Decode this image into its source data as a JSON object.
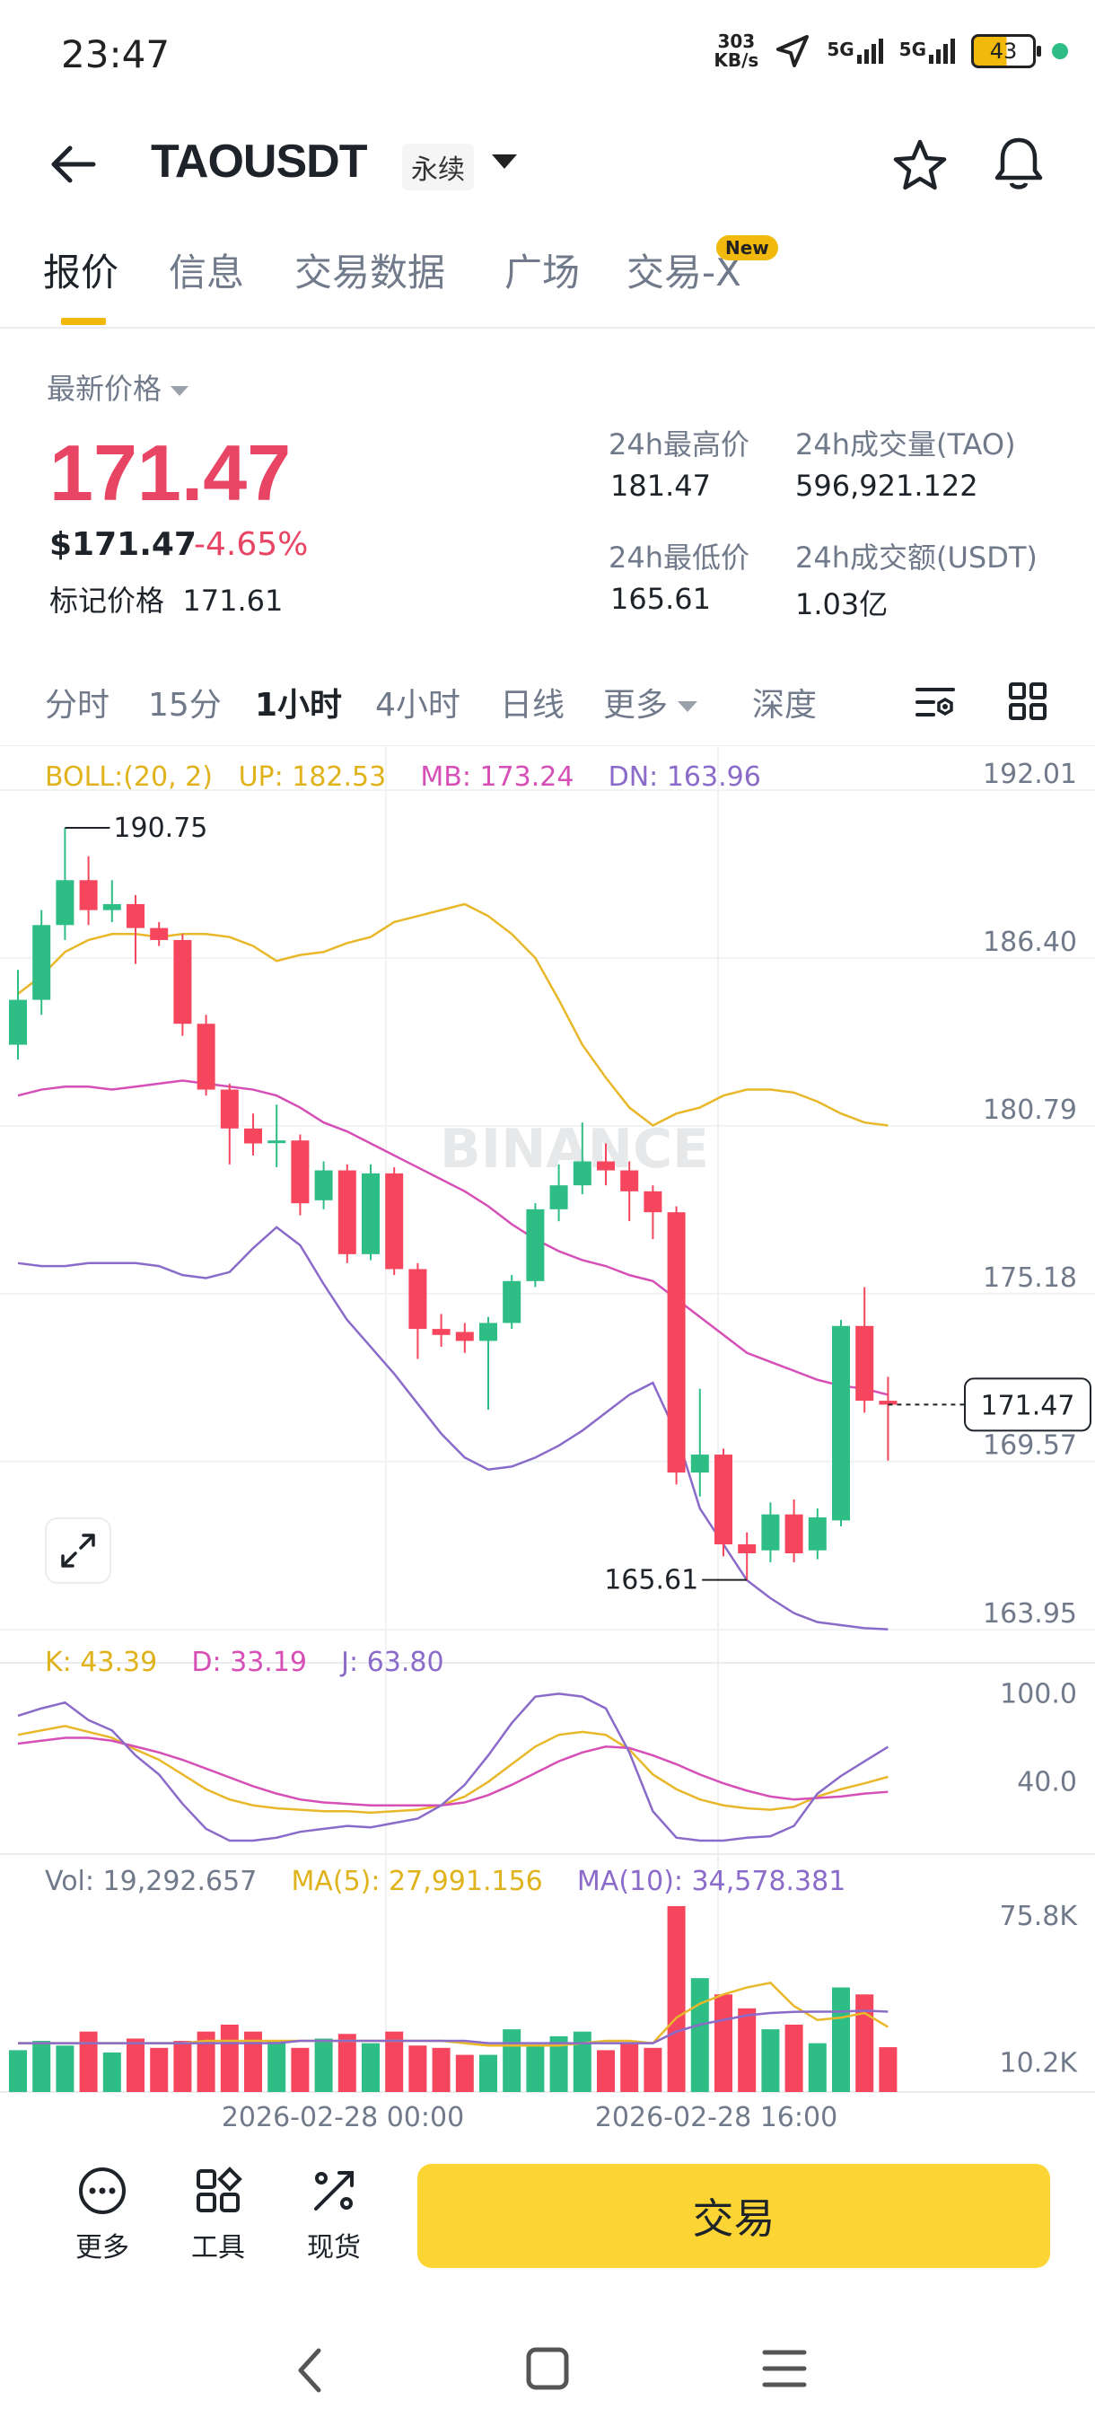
{
  "status": {
    "time": "23:47",
    "net_speed_top": "303",
    "net_speed_bottom": "KB/s",
    "sig1": "5G",
    "sig2": "5G",
    "battery": "43"
  },
  "header": {
    "pair": "TAOUSDT",
    "contract_type": "永续"
  },
  "tabs": [
    {
      "label": "报价"
    },
    {
      "label": "信息"
    },
    {
      "label": "交易数据"
    },
    {
      "label": "广场"
    },
    {
      "label": "交易-X"
    }
  ],
  "new_badge": "New",
  "price": {
    "latest_label": "最新价格",
    "last": "171.47",
    "usd": "$171.47",
    "change": "-4.65%",
    "mark_label": "标记价格",
    "mark_value": "171.61"
  },
  "stats": {
    "high_label": "24h最高价",
    "high_value": "181.47",
    "vol_tao_label": "24h成交量(TAO)",
    "vol_tao_value": "596,921.122",
    "low_label": "24h最低价",
    "low_value": "165.61",
    "vol_usdt_label": "24h成交额(USDT)",
    "vol_usdt_value": "1.03亿"
  },
  "timeframes": [
    {
      "label": "分时"
    },
    {
      "label": "15分"
    },
    {
      "label": "1小时"
    },
    {
      "label": "4小时"
    },
    {
      "label": "日线"
    },
    {
      "label": "更多"
    },
    {
      "label": "深度"
    }
  ],
  "colors": {
    "up": "#2ebd85",
    "down": "#f6465d",
    "boll_up": "#e8b82a",
    "boll_mb": "#d64fb6",
    "boll_dn": "#8a6bc9",
    "accent": "#fcd535"
  },
  "indicators": {
    "boll": {
      "label": "BOLL:(20, 2)",
      "up": "UP: 182.53",
      "mb": "MB: 173.24",
      "dn": "DN: 163.96"
    },
    "kdj": {
      "k": "K: 43.39",
      "d": "D: 33.19",
      "j": "J: 63.80"
    },
    "vol": {
      "vol": "Vol: 19,292.657",
      "ma5": "MA(5): 27,991.156",
      "ma10": "MA(10): 34,578.381"
    }
  },
  "watermark": "BINANCE",
  "axis": {
    "price_ticks": [
      "192.01",
      "186.40",
      "180.79",
      "175.18",
      "169.57",
      "163.95"
    ],
    "kdj_ticks": [
      "100.0",
      "40.0"
    ],
    "vol_ticks": [
      "75.8K",
      "10.2K"
    ],
    "time_labels": [
      "2026-02-28 00:00",
      "2026-02-28 16:00"
    ],
    "high_marker": "190.75",
    "low_marker": "165.61",
    "current_price": "171.47"
  },
  "chart_data": {
    "type": "candlestick",
    "interval": "1小时",
    "ylim": [
      163.95,
      192.01
    ],
    "candles": [
      {
        "o": 183.5,
        "c": 185.0,
        "h": 186.0,
        "l": 183.0
      },
      {
        "o": 185.0,
        "c": 187.5,
        "h": 188.0,
        "l": 184.5
      },
      {
        "o": 187.5,
        "c": 189.0,
        "h": 190.75,
        "l": 187.0
      },
      {
        "o": 189.0,
        "c": 188.0,
        "h": 189.8,
        "l": 187.5
      },
      {
        "o": 188.0,
        "c": 188.2,
        "h": 189.0,
        "l": 187.6
      },
      {
        "o": 188.2,
        "c": 187.4,
        "h": 188.5,
        "l": 186.2
      },
      {
        "o": 187.4,
        "c": 187.0,
        "h": 187.6,
        "l": 186.8
      },
      {
        "o": 187.0,
        "c": 184.2,
        "h": 187.2,
        "l": 183.8
      },
      {
        "o": 184.2,
        "c": 182.0,
        "h": 184.5,
        "l": 181.8
      },
      {
        "o": 182.0,
        "c": 180.7,
        "h": 182.2,
        "l": 179.5
      },
      {
        "o": 180.7,
        "c": 180.2,
        "h": 181.2,
        "l": 179.8
      },
      {
        "o": 180.3,
        "c": 180.3,
        "h": 181.5,
        "l": 179.4
      },
      {
        "o": 180.3,
        "c": 178.2,
        "h": 180.5,
        "l": 177.8
      },
      {
        "o": 178.3,
        "c": 179.3,
        "h": 179.6,
        "l": 178.0
      },
      {
        "o": 179.3,
        "c": 176.5,
        "h": 179.5,
        "l": 176.2
      },
      {
        "o": 176.5,
        "c": 179.2,
        "h": 179.5,
        "l": 176.3
      },
      {
        "o": 179.2,
        "c": 176.0,
        "h": 179.4,
        "l": 175.8
      },
      {
        "o": 176.0,
        "c": 174.0,
        "h": 176.2,
        "l": 173.0
      },
      {
        "o": 174.0,
        "c": 173.8,
        "h": 174.5,
        "l": 173.4
      },
      {
        "o": 173.9,
        "c": 173.6,
        "h": 174.2,
        "l": 173.2
      },
      {
        "o": 173.6,
        "c": 174.2,
        "h": 174.4,
        "l": 171.3
      },
      {
        "o": 174.2,
        "c": 175.6,
        "h": 175.8,
        "l": 174.0
      },
      {
        "o": 175.6,
        "c": 178.0,
        "h": 178.2,
        "l": 175.4
      },
      {
        "o": 178.0,
        "c": 178.8,
        "h": 179.5,
        "l": 177.6
      },
      {
        "o": 178.8,
        "c": 179.6,
        "h": 180.9,
        "l": 178.5
      },
      {
        "o": 179.6,
        "c": 179.3,
        "h": 180.2,
        "l": 178.8
      },
      {
        "o": 179.3,
        "c": 178.6,
        "h": 179.6,
        "l": 177.6
      },
      {
        "o": 178.6,
        "c": 177.9,
        "h": 178.8,
        "l": 177.0
      },
      {
        "o": 177.9,
        "c": 169.2,
        "h": 178.1,
        "l": 168.8
      },
      {
        "o": 169.2,
        "c": 169.8,
        "h": 172.0,
        "l": 168.4
      },
      {
        "o": 169.8,
        "c": 166.8,
        "h": 170.0,
        "l": 166.4
      },
      {
        "o": 166.8,
        "c": 166.5,
        "h": 167.2,
        "l": 165.61
      },
      {
        "o": 166.6,
        "c": 167.8,
        "h": 168.2,
        "l": 166.2
      },
      {
        "o": 167.8,
        "c": 166.5,
        "h": 168.3,
        "l": 166.2
      },
      {
        "o": 166.6,
        "c": 167.7,
        "h": 168.0,
        "l": 166.3
      },
      {
        "o": 167.6,
        "c": 174.1,
        "h": 174.3,
        "l": 167.4
      },
      {
        "o": 174.1,
        "c": 171.6,
        "h": 175.4,
        "l": 171.2
      },
      {
        "o": 171.6,
        "c": 171.47,
        "h": 172.4,
        "l": 169.6
      }
    ],
    "boll_up": [
      185.2,
      185.8,
      186.6,
      187.0,
      187.2,
      187.2,
      187.1,
      187.2,
      187.2,
      187.1,
      186.8,
      186.3,
      186.5,
      186.6,
      186.9,
      187.1,
      187.6,
      187.8,
      188.0,
      188.2,
      187.8,
      187.2,
      186.4,
      185.0,
      183.5,
      182.4,
      181.4,
      180.8,
      181.2,
      181.4,
      181.8,
      182.0,
      182.0,
      181.9,
      181.6,
      181.2,
      180.9,
      180.8
    ],
    "boll_mb": [
      181.8,
      182.0,
      182.1,
      182.1,
      182.0,
      182.1,
      182.2,
      182.3,
      182.2,
      182.1,
      182.0,
      181.8,
      181.4,
      180.9,
      180.6,
      180.2,
      179.8,
      179.4,
      179.0,
      178.6,
      178.1,
      177.5,
      177.0,
      176.6,
      176.3,
      176.1,
      175.8,
      175.6,
      175.0,
      174.4,
      173.8,
      173.2,
      172.9,
      172.6,
      172.3,
      172.1,
      172.0,
      171.8
    ],
    "boll_dn": [
      176.2,
      176.1,
      176.1,
      176.2,
      176.2,
      176.2,
      176.1,
      175.8,
      175.7,
      175.9,
      176.7,
      177.4,
      176.8,
      175.5,
      174.3,
      173.4,
      172.5,
      171.5,
      170.5,
      169.7,
      169.3,
      169.4,
      169.7,
      170.1,
      170.6,
      171.2,
      171.8,
      172.2,
      170.5,
      168.0,
      166.8,
      165.6,
      165.0,
      164.5,
      164.2,
      164.1,
      164.0,
      163.96
    ],
    "kdj_k": [
      72,
      75,
      78,
      74,
      70,
      62,
      55,
      45,
      35,
      28,
      24,
      22,
      21,
      20,
      20,
      19,
      20,
      21,
      24,
      30,
      40,
      52,
      64,
      72,
      74,
      72,
      62,
      45,
      35,
      28,
      24,
      22,
      21,
      23,
      30,
      35,
      39,
      43.39
    ],
    "kdj_d": [
      66,
      68,
      70,
      70,
      68,
      64,
      60,
      55,
      49,
      43,
      37,
      32,
      28,
      26,
      25,
      24,
      24,
      24,
      24,
      26,
      31,
      38,
      46,
      54,
      60,
      64,
      63,
      58,
      52,
      45,
      39,
      34,
      30,
      28,
      29,
      30,
      32,
      33.19
    ],
    "kdj_j": [
      85,
      90,
      94,
      82,
      75,
      58,
      45,
      25,
      8,
      0,
      0,
      2,
      6,
      8,
      10,
      9,
      12,
      15,
      24,
      38,
      58,
      80,
      98,
      100,
      98,
      90,
      60,
      20,
      2,
      0,
      0,
      2,
      3,
      10,
      32,
      44,
      54,
      63.8
    ],
    "volume": [
      18000,
      22000,
      20000,
      26000,
      17000,
      23000,
      19000,
      22000,
      26000,
      29000,
      26000,
      22000,
      19000,
      23000,
      25000,
      21000,
      26000,
      20000,
      19000,
      16000,
      16000,
      27000,
      20000,
      24000,
      26000,
      18000,
      21000,
      19000,
      80000,
      49000,
      42000,
      36000,
      27000,
      29000,
      21000,
      45000,
      42000,
      19292.657
    ],
    "vol_ma5": [
      21000,
      21000,
      21000,
      21000,
      21000,
      21000,
      21000,
      21000,
      22000,
      22000,
      22000,
      22000,
      22000,
      22000,
      22000,
      22000,
      22000,
      22000,
      22000,
      21000,
      20000,
      20000,
      20000,
      20000,
      21000,
      22000,
      22000,
      21000,
      32000,
      38000,
      42000,
      45000,
      47000,
      37000,
      31000,
      32000,
      34000,
      27991.156
    ],
    "vol_ma10": [
      21000,
      21000,
      21000,
      21000,
      21000,
      21000,
      21000,
      21000,
      21000,
      21000,
      21000,
      21000,
      22000,
      22000,
      22000,
      22000,
      22000,
      22000,
      22000,
      22000,
      21000,
      21000,
      21000,
      21000,
      21000,
      21000,
      21000,
      21000,
      26000,
      29000,
      31000,
      33000,
      34000,
      34500,
      34600,
      34600,
      35000,
      34578.381
    ]
  },
  "bottom": {
    "more": "更多",
    "tools": "工具",
    "spot": "现货",
    "trade": "交易"
  }
}
